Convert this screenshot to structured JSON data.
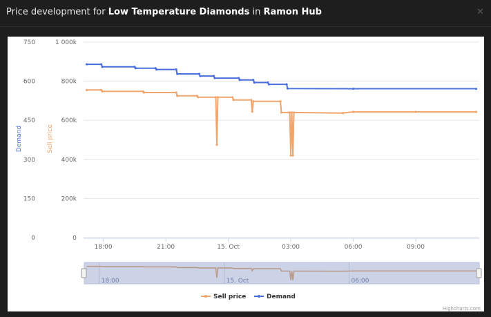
{
  "dialog": {
    "title_prefix": "Price development for ",
    "commodity": "Low Temperature Diamonds",
    "title_mid": " in ",
    "station": "Ramon Hub",
    "close_icon": "close-icon"
  },
  "colors": {
    "sell": "#f0a56c",
    "demand": "#4a6fdc",
    "grid": "#e6e6e6",
    "axis_text": "#666666",
    "navigator_bg": "#cdd3e6"
  },
  "chart_data": {
    "type": "line",
    "xlabel": "",
    "x_tick_labels": [
      "18:00",
      "21:00",
      "15. Oct",
      "03:00",
      "06:00",
      "09:00"
    ],
    "x_tick_hours": [
      18,
      21,
      24,
      27,
      30,
      33
    ],
    "x_range_hours": [
      17.05,
      36.05
    ],
    "y_axes": [
      {
        "label": "Demand",
        "ticks": [
          "0",
          "150",
          "300",
          "450",
          "600",
          "750"
        ],
        "ylim": [
          0,
          750
        ]
      },
      {
        "label": "Sell price",
        "ticks": [
          "0",
          "200k",
          "400k",
          "600k",
          "800k",
          "1 000k"
        ],
        "ylim": [
          0,
          1000000
        ]
      }
    ],
    "series": [
      {
        "name": "Sell price",
        "axis": "Sell price",
        "color": "#f0a56c",
        "points": [
          [
            17.2,
            755000
          ],
          [
            17.9,
            755000
          ],
          [
            17.95,
            748000
          ],
          [
            19.9,
            748000
          ],
          [
            19.95,
            742000
          ],
          [
            21.5,
            742000
          ],
          [
            21.55,
            725000
          ],
          [
            22.5,
            725000
          ],
          [
            22.55,
            718000
          ],
          [
            23.4,
            718000
          ],
          [
            23.45,
            475000
          ],
          [
            23.5,
            718000
          ],
          [
            24.2,
            718000
          ],
          [
            24.25,
            704000
          ],
          [
            25.1,
            704000
          ],
          [
            25.15,
            645000
          ],
          [
            25.2,
            697000
          ],
          [
            26.5,
            697000
          ],
          [
            26.55,
            640000
          ],
          [
            26.95,
            640000
          ],
          [
            27.0,
            420000
          ],
          [
            27.05,
            640000
          ],
          [
            27.1,
            420000
          ],
          [
            27.15,
            640000
          ],
          [
            29.5,
            637000
          ],
          [
            30.0,
            643000
          ],
          [
            33.0,
            643000
          ],
          [
            35.9,
            643000
          ]
        ]
      },
      {
        "name": "Demand",
        "axis": "Demand",
        "color": "#4a6fdc",
        "points": [
          [
            17.2,
            665
          ],
          [
            17.9,
            665
          ],
          [
            17.95,
            655
          ],
          [
            19.5,
            655
          ],
          [
            19.55,
            650
          ],
          [
            20.5,
            650
          ],
          [
            20.55,
            645
          ],
          [
            21.5,
            645
          ],
          [
            21.55,
            628
          ],
          [
            22.6,
            628
          ],
          [
            22.65,
            620
          ],
          [
            23.3,
            620
          ],
          [
            23.35,
            612
          ],
          [
            24.5,
            612
          ],
          [
            24.55,
            605
          ],
          [
            25.2,
            605
          ],
          [
            25.25,
            595
          ],
          [
            25.9,
            595
          ],
          [
            25.95,
            588
          ],
          [
            26.8,
            588
          ],
          [
            26.85,
            572
          ],
          [
            30.0,
            571
          ],
          [
            35.9,
            571
          ]
        ]
      }
    ],
    "navigator": {
      "x_tick_labels": [
        "18:00",
        "15. Oct",
        "06:00"
      ]
    },
    "legend_position": "bottom-center",
    "credits": "Highcharts.com"
  }
}
